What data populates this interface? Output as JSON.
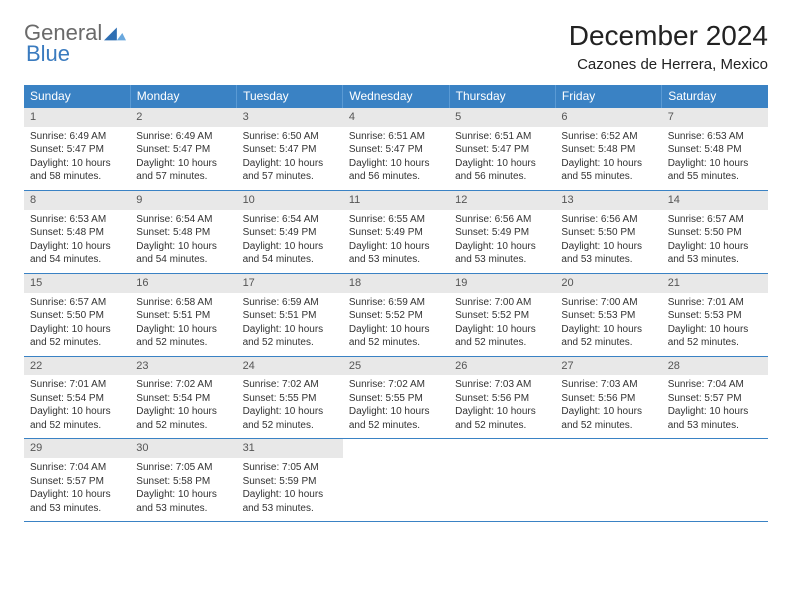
{
  "brand": {
    "word1": "General",
    "word2": "Blue",
    "mark_color": "#2f6fb3"
  },
  "title": "December 2024",
  "location": "Cazones de Herrera, Mexico",
  "colors": {
    "header_bg": "#3a82c4",
    "header_text": "#ffffff",
    "daynum_bg": "#e8e8e8",
    "rule": "#3a82c4",
    "body_text": "#333333"
  },
  "weekdays": [
    "Sunday",
    "Monday",
    "Tuesday",
    "Wednesday",
    "Thursday",
    "Friday",
    "Saturday"
  ],
  "days": [
    {
      "n": "1",
      "sr": "6:49 AM",
      "ss": "5:47 PM",
      "dl": "10 hours and 58 minutes."
    },
    {
      "n": "2",
      "sr": "6:49 AM",
      "ss": "5:47 PM",
      "dl": "10 hours and 57 minutes."
    },
    {
      "n": "3",
      "sr": "6:50 AM",
      "ss": "5:47 PM",
      "dl": "10 hours and 57 minutes."
    },
    {
      "n": "4",
      "sr": "6:51 AM",
      "ss": "5:47 PM",
      "dl": "10 hours and 56 minutes."
    },
    {
      "n": "5",
      "sr": "6:51 AM",
      "ss": "5:47 PM",
      "dl": "10 hours and 56 minutes."
    },
    {
      "n": "6",
      "sr": "6:52 AM",
      "ss": "5:48 PM",
      "dl": "10 hours and 55 minutes."
    },
    {
      "n": "7",
      "sr": "6:53 AM",
      "ss": "5:48 PM",
      "dl": "10 hours and 55 minutes."
    },
    {
      "n": "8",
      "sr": "6:53 AM",
      "ss": "5:48 PM",
      "dl": "10 hours and 54 minutes."
    },
    {
      "n": "9",
      "sr": "6:54 AM",
      "ss": "5:48 PM",
      "dl": "10 hours and 54 minutes."
    },
    {
      "n": "10",
      "sr": "6:54 AM",
      "ss": "5:49 PM",
      "dl": "10 hours and 54 minutes."
    },
    {
      "n": "11",
      "sr": "6:55 AM",
      "ss": "5:49 PM",
      "dl": "10 hours and 53 minutes."
    },
    {
      "n": "12",
      "sr": "6:56 AM",
      "ss": "5:49 PM",
      "dl": "10 hours and 53 minutes."
    },
    {
      "n": "13",
      "sr": "6:56 AM",
      "ss": "5:50 PM",
      "dl": "10 hours and 53 minutes."
    },
    {
      "n": "14",
      "sr": "6:57 AM",
      "ss": "5:50 PM",
      "dl": "10 hours and 53 minutes."
    },
    {
      "n": "15",
      "sr": "6:57 AM",
      "ss": "5:50 PM",
      "dl": "10 hours and 52 minutes."
    },
    {
      "n": "16",
      "sr": "6:58 AM",
      "ss": "5:51 PM",
      "dl": "10 hours and 52 minutes."
    },
    {
      "n": "17",
      "sr": "6:59 AM",
      "ss": "5:51 PM",
      "dl": "10 hours and 52 minutes."
    },
    {
      "n": "18",
      "sr": "6:59 AM",
      "ss": "5:52 PM",
      "dl": "10 hours and 52 minutes."
    },
    {
      "n": "19",
      "sr": "7:00 AM",
      "ss": "5:52 PM",
      "dl": "10 hours and 52 minutes."
    },
    {
      "n": "20",
      "sr": "7:00 AM",
      "ss": "5:53 PM",
      "dl": "10 hours and 52 minutes."
    },
    {
      "n": "21",
      "sr": "7:01 AM",
      "ss": "5:53 PM",
      "dl": "10 hours and 52 minutes."
    },
    {
      "n": "22",
      "sr": "7:01 AM",
      "ss": "5:54 PM",
      "dl": "10 hours and 52 minutes."
    },
    {
      "n": "23",
      "sr": "7:02 AM",
      "ss": "5:54 PM",
      "dl": "10 hours and 52 minutes."
    },
    {
      "n": "24",
      "sr": "7:02 AM",
      "ss": "5:55 PM",
      "dl": "10 hours and 52 minutes."
    },
    {
      "n": "25",
      "sr": "7:02 AM",
      "ss": "5:55 PM",
      "dl": "10 hours and 52 minutes."
    },
    {
      "n": "26",
      "sr": "7:03 AM",
      "ss": "5:56 PM",
      "dl": "10 hours and 52 minutes."
    },
    {
      "n": "27",
      "sr": "7:03 AM",
      "ss": "5:56 PM",
      "dl": "10 hours and 52 minutes."
    },
    {
      "n": "28",
      "sr": "7:04 AM",
      "ss": "5:57 PM",
      "dl": "10 hours and 53 minutes."
    },
    {
      "n": "29",
      "sr": "7:04 AM",
      "ss": "5:57 PM",
      "dl": "10 hours and 53 minutes."
    },
    {
      "n": "30",
      "sr": "7:05 AM",
      "ss": "5:58 PM",
      "dl": "10 hours and 53 minutes."
    },
    {
      "n": "31",
      "sr": "7:05 AM",
      "ss": "5:59 PM",
      "dl": "10 hours and 53 minutes."
    }
  ],
  "labels": {
    "sunrise": "Sunrise: ",
    "sunset": "Sunset: ",
    "daylight": "Daylight: "
  }
}
